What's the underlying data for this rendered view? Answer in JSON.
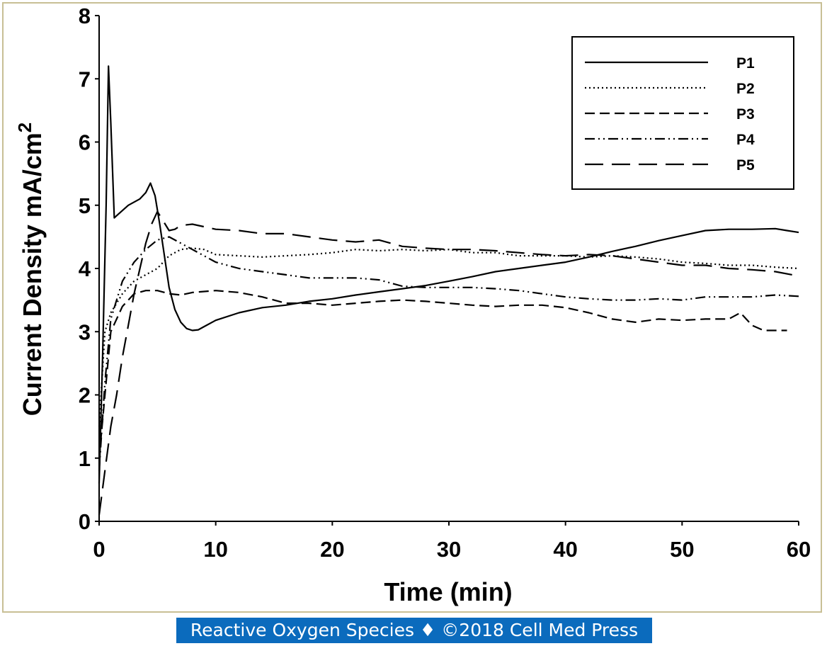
{
  "footer": {
    "text": "Reactive Oxygen Species ♦ ©2018 Cell Med Press"
  },
  "chart_data": {
    "type": "line",
    "title": "",
    "xlabel": "Time (min)",
    "ylabel_main": "Current Density mA/cm",
    "ylabel_superscript": "2",
    "xlim": [
      0,
      60
    ],
    "ylim": [
      0,
      8
    ],
    "xticks": [
      0,
      10,
      20,
      30,
      40,
      50,
      60
    ],
    "yticks": [
      0,
      1,
      2,
      3,
      4,
      5,
      6,
      7,
      8
    ],
    "grid": false,
    "legend_position": "top-right",
    "series": [
      {
        "name": "P1",
        "dash": "solid",
        "x": [
          0,
          0.3,
          0.6,
          0.8,
          1.0,
          1.3,
          1.6,
          2.5,
          3.5,
          4.0,
          4.4,
          4.8,
          5.2,
          5.6,
          6.0,
          6.5,
          7.0,
          7.5,
          8.0,
          8.5,
          9.0,
          10,
          12,
          14,
          16,
          18,
          20,
          22,
          24,
          26,
          28,
          30,
          32,
          34,
          36,
          38,
          40,
          42,
          44,
          46,
          48,
          50,
          52,
          54,
          56,
          58,
          59,
          60
        ],
        "y": [
          0.6,
          2.6,
          5.0,
          7.2,
          6.3,
          4.8,
          4.85,
          5.0,
          5.1,
          5.2,
          5.35,
          5.15,
          4.7,
          4.2,
          3.7,
          3.35,
          3.15,
          3.05,
          3.02,
          3.03,
          3.08,
          3.18,
          3.3,
          3.38,
          3.42,
          3.48,
          3.52,
          3.58,
          3.63,
          3.68,
          3.73,
          3.8,
          3.87,
          3.95,
          4.0,
          4.05,
          4.1,
          4.18,
          4.27,
          4.35,
          4.44,
          4.52,
          4.6,
          4.62,
          4.62,
          4.63,
          4.6,
          4.57
        ]
      },
      {
        "name": "P2",
        "dash": "dotted",
        "x": [
          0,
          0.5,
          1.0,
          2.0,
          3.0,
          4.0,
          5.0,
          6.0,
          7.0,
          8.0,
          9.0,
          10,
          12,
          14,
          16,
          18,
          20,
          22,
          24,
          26,
          28,
          30,
          32,
          34,
          36,
          38,
          40,
          42,
          44,
          46,
          48,
          50,
          52,
          54,
          56,
          58,
          60
        ],
        "y": [
          1.5,
          3.0,
          3.3,
          3.6,
          3.8,
          3.9,
          4.0,
          4.2,
          4.3,
          4.32,
          4.3,
          4.22,
          4.2,
          4.18,
          4.2,
          4.22,
          4.25,
          4.3,
          4.28,
          4.3,
          4.28,
          4.3,
          4.25,
          4.25,
          4.2,
          4.2,
          4.2,
          4.18,
          4.2,
          4.18,
          4.15,
          4.1,
          4.08,
          4.05,
          4.05,
          4.02,
          4.0
        ]
      },
      {
        "name": "P3",
        "dash": "dashed",
        "x": [
          0,
          0.5,
          1.0,
          2.0,
          3.0,
          4.0,
          5.0,
          6.0,
          7.0,
          8.0,
          10,
          12,
          14,
          16,
          18,
          20,
          22,
          24,
          26,
          28,
          30,
          32,
          34,
          36,
          38,
          40,
          42,
          44,
          46,
          48,
          50,
          52,
          54,
          55,
          56,
          57,
          58,
          59
        ],
        "y": [
          1.0,
          2.0,
          3.0,
          3.4,
          3.6,
          3.65,
          3.65,
          3.6,
          3.58,
          3.62,
          3.65,
          3.62,
          3.55,
          3.45,
          3.45,
          3.42,
          3.45,
          3.48,
          3.5,
          3.48,
          3.45,
          3.42,
          3.4,
          3.42,
          3.42,
          3.38,
          3.3,
          3.2,
          3.15,
          3.2,
          3.18,
          3.2,
          3.2,
          3.3,
          3.1,
          3.02,
          3.02,
          3.02
        ]
      },
      {
        "name": "P4",
        "dash": "dash-dot-dot",
        "x": [
          0,
          0.5,
          1.0,
          2.0,
          3.0,
          4.0,
          5.0,
          6.0,
          7.0,
          8.0,
          9.0,
          10,
          12,
          14,
          16,
          18,
          20,
          22,
          24,
          26,
          28,
          30,
          32,
          34,
          36,
          38,
          40,
          42,
          44,
          46,
          48,
          50,
          52,
          54,
          56,
          58,
          60
        ],
        "y": [
          0.8,
          2.2,
          3.2,
          3.8,
          4.1,
          4.3,
          4.45,
          4.5,
          4.4,
          4.3,
          4.2,
          4.1,
          4.0,
          3.95,
          3.9,
          3.85,
          3.85,
          3.85,
          3.82,
          3.72,
          3.7,
          3.7,
          3.7,
          3.68,
          3.65,
          3.6,
          3.55,
          3.52,
          3.5,
          3.5,
          3.52,
          3.5,
          3.55,
          3.55,
          3.55,
          3.58,
          3.56
        ]
      },
      {
        "name": "P5",
        "dash": "long-dash",
        "x": [
          0,
          0.5,
          1.0,
          1.5,
          2.0,
          2.5,
          3.0,
          3.5,
          4.0,
          4.5,
          5.0,
          5.5,
          6.0,
          6.5,
          7.0,
          8.0,
          10,
          12,
          14,
          16,
          18,
          20,
          22,
          24,
          26,
          28,
          30,
          32,
          34,
          36,
          38,
          40,
          42,
          44,
          46,
          48,
          50,
          52,
          54,
          56,
          58,
          60
        ],
        "y": [
          0.1,
          0.8,
          1.5,
          2.0,
          2.6,
          3.1,
          3.6,
          4.0,
          4.4,
          4.7,
          4.9,
          4.75,
          4.6,
          4.62,
          4.68,
          4.7,
          4.62,
          4.6,
          4.55,
          4.55,
          4.5,
          4.45,
          4.42,
          4.45,
          4.35,
          4.32,
          4.3,
          4.3,
          4.28,
          4.25,
          4.22,
          4.2,
          4.22,
          4.2,
          4.15,
          4.1,
          4.05,
          4.05,
          4.0,
          3.98,
          3.95,
          3.88
        ]
      }
    ]
  }
}
